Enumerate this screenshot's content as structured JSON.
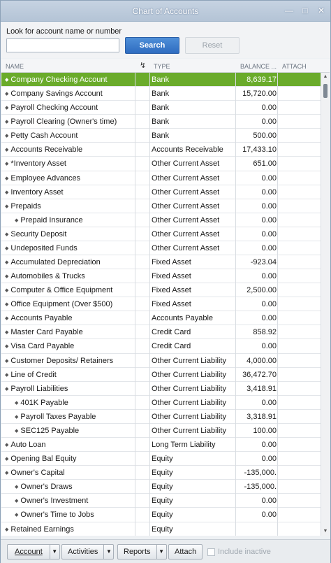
{
  "window": {
    "title": "Chart of Accounts"
  },
  "search": {
    "label": "Look for account name or number",
    "value": "",
    "search_label": "Search",
    "reset_label": "Reset"
  },
  "columns": {
    "name": "NAME",
    "type": "TYPE",
    "balance": "BALANCE ...",
    "attach": "ATTACH"
  },
  "accounts": [
    {
      "name": "Company Checking Account",
      "indent": 0,
      "type": "Bank",
      "balance": "8,639.17",
      "selected": true
    },
    {
      "name": "Company Savings Account",
      "indent": 0,
      "type": "Bank",
      "balance": "15,720.00"
    },
    {
      "name": "Payroll Checking Account",
      "indent": 0,
      "type": "Bank",
      "balance": "0.00"
    },
    {
      "name": "Payroll Clearing (Owner's time)",
      "indent": 0,
      "type": "Bank",
      "balance": "0.00"
    },
    {
      "name": "Petty Cash Account",
      "indent": 0,
      "type": "Bank",
      "balance": "500.00"
    },
    {
      "name": "Accounts Receivable",
      "indent": 0,
      "type": "Accounts Receivable",
      "balance": "17,433.10"
    },
    {
      "name": "*Inventory Asset",
      "indent": 0,
      "type": "Other Current Asset",
      "balance": "651.00"
    },
    {
      "name": "Employee Advances",
      "indent": 0,
      "type": "Other Current Asset",
      "balance": "0.00"
    },
    {
      "name": "Inventory Asset",
      "indent": 0,
      "type": "Other Current Asset",
      "balance": "0.00"
    },
    {
      "name": "Prepaids",
      "indent": 0,
      "type": "Other Current Asset",
      "balance": "0.00"
    },
    {
      "name": "Prepaid Insurance",
      "indent": 1,
      "type": "Other Current Asset",
      "balance": "0.00"
    },
    {
      "name": "Security Deposit",
      "indent": 0,
      "type": "Other Current Asset",
      "balance": "0.00"
    },
    {
      "name": "Undeposited Funds",
      "indent": 0,
      "type": "Other Current Asset",
      "balance": "0.00"
    },
    {
      "name": "Accumulated Depreciation",
      "indent": 0,
      "type": "Fixed Asset",
      "balance": "-923.04"
    },
    {
      "name": "Automobiles & Trucks",
      "indent": 0,
      "type": "Fixed Asset",
      "balance": "0.00"
    },
    {
      "name": "Computer & Office Equipment",
      "indent": 0,
      "type": "Fixed Asset",
      "balance": "2,500.00"
    },
    {
      "name": "Office Equipment  (Over $500)",
      "indent": 0,
      "type": "Fixed Asset",
      "balance": "0.00"
    },
    {
      "name": "Accounts Payable",
      "indent": 0,
      "type": "Accounts Payable",
      "balance": "0.00"
    },
    {
      "name": "Master Card Payable",
      "indent": 0,
      "type": "Credit Card",
      "balance": "858.92"
    },
    {
      "name": "Visa Card Payable",
      "indent": 0,
      "type": "Credit Card",
      "balance": "0.00"
    },
    {
      "name": "Customer Deposits/ Retainers",
      "indent": 0,
      "type": "Other Current Liability",
      "balance": "4,000.00"
    },
    {
      "name": "Line of Credit",
      "indent": 0,
      "type": "Other Current Liability",
      "balance": "36,472.70"
    },
    {
      "name": "Payroll Liabilities",
      "indent": 0,
      "type": "Other Current Liability",
      "balance": "3,418.91"
    },
    {
      "name": "401K Payable",
      "indent": 1,
      "type": "Other Current Liability",
      "balance": "0.00"
    },
    {
      "name": "Payroll Taxes Payable",
      "indent": 1,
      "type": "Other Current Liability",
      "balance": "3,318.91"
    },
    {
      "name": "SEC125 Payable",
      "indent": 1,
      "type": "Other Current Liability",
      "balance": "100.00"
    },
    {
      "name": "Auto Loan",
      "indent": 0,
      "type": "Long Term Liability",
      "balance": "0.00"
    },
    {
      "name": "Opening Bal Equity",
      "indent": 0,
      "type": "Equity",
      "balance": "0.00"
    },
    {
      "name": "Owner's Capital",
      "indent": 0,
      "type": "Equity",
      "balance": "-135,000."
    },
    {
      "name": "Owner's  Draws",
      "indent": 1,
      "type": "Equity",
      "balance": "-135,000."
    },
    {
      "name": "Owner's  Investment",
      "indent": 1,
      "type": "Equity",
      "balance": "0.00"
    },
    {
      "name": "Owner's Time to Jobs",
      "indent": 1,
      "type": "Equity",
      "balance": "0.00"
    },
    {
      "name": "Retained Earnings",
      "indent": 0,
      "type": "Equity",
      "balance": ""
    }
  ],
  "footer": {
    "account": "Account",
    "activities": "Activities",
    "reports": "Reports",
    "attach": "Attach",
    "include_inactive": "Include inactive"
  },
  "icons": {
    "lightning": "lightning-icon",
    "minimize": "minimize-icon",
    "restore": "restore-icon",
    "close": "close-icon"
  },
  "colors": {
    "selected_row": "#6aab2b",
    "search_button": "#2e6cc0"
  }
}
